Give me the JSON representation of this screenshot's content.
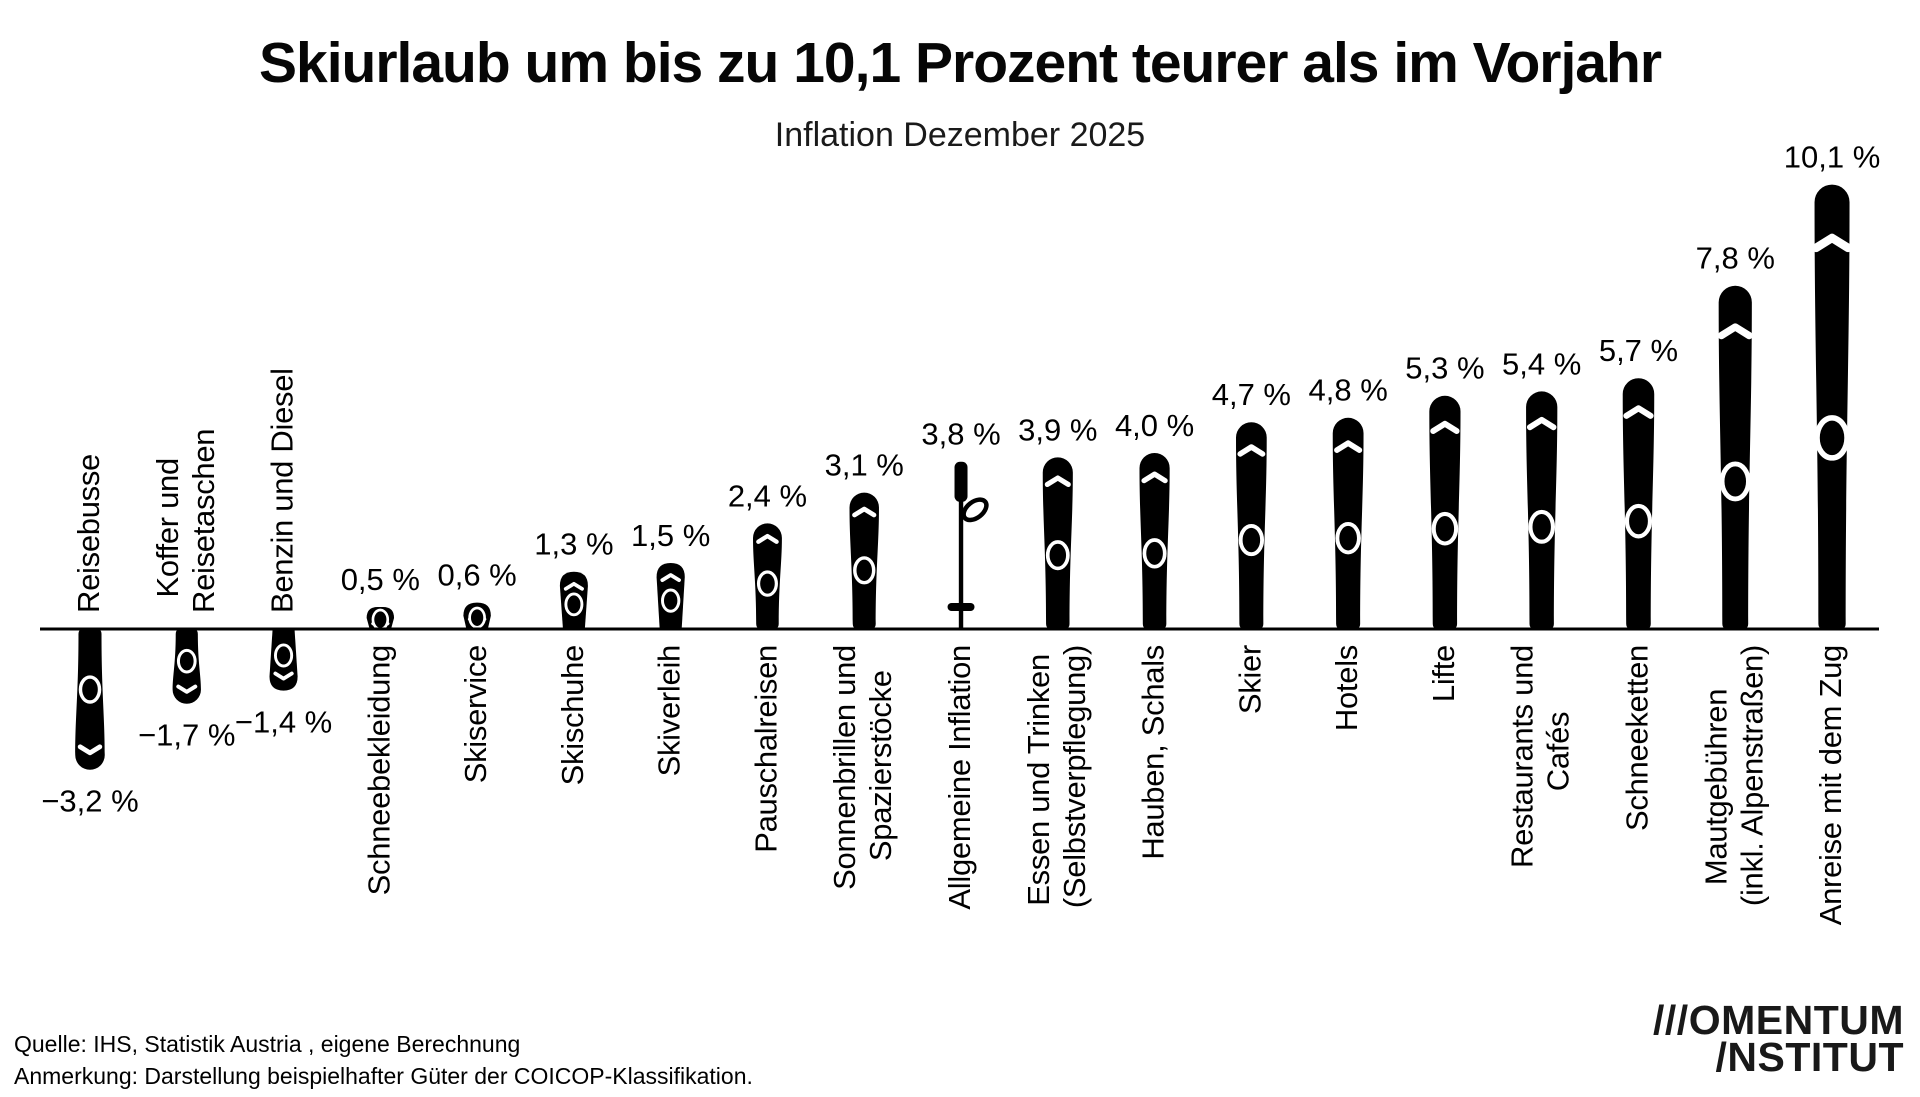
{
  "page": {
    "title": "Skiurlaub um bis zu 10,1 Prozent teurer als im Vorjahr",
    "subtitle": "Inflation Dezember 2025",
    "source_line": "Quelle: IHS, Statistik Austria , eigene Berechnung",
    "note_line": "Anmerkung: Darstellung beispielhafter Güter der COICOP-Klassifikation.",
    "logo_line1": "///OMENTUM",
    "logo_line2": "/NSTITUT"
  },
  "colors": {
    "ink": "#000000",
    "background": "#ffffff",
    "logo": "#191919"
  },
  "chart_data": {
    "type": "bar",
    "title": "Skiurlaub um bis zu 10,1 Prozent teurer als im Vorjahr",
    "subtitle": "Inflation Dezember 2025",
    "unit": "%",
    "ylim": [
      -3.5,
      10.5
    ],
    "baseline": 0,
    "grid": false,
    "legend": false,
    "pictogram": "bars drawn as skis; 'Allgemeine Inflation' drawn as ski pole",
    "categories": [
      "Reisebusse",
      "Koffer und Reisetaschen",
      "Benzin und Diesel",
      "Schneebekleidung",
      "Skiservice",
      "Skischuhe",
      "Skiverleih",
      "Pauschalreisen",
      "Sonnenbrillen und Spazierstöcke",
      "Allgemeine Inflation",
      "Essen und Trinken (Selbstverpflegung)",
      "Hauben, Schals",
      "Skier",
      "Hotels",
      "Lifte",
      "Restaurants und Cafés",
      "Schneeketten",
      "Mautgebühren (inkl. Alpenstraßen)",
      "Anreise mit dem Zug"
    ],
    "category_lines": [
      [
        "Reisebusse"
      ],
      [
        "Koffer und",
        "Reisetaschen"
      ],
      [
        "Benzin und Diesel"
      ],
      [
        "Schneebekleidung"
      ],
      [
        "Skiservice"
      ],
      [
        "Skischuhe"
      ],
      [
        "Skiverleih"
      ],
      [
        "Pauschalreisen"
      ],
      [
        "Sonnenbrillen und",
        "Spazierstöcke"
      ],
      [
        "Allgemeine Inflation"
      ],
      [
        "Essen und Trinken",
        "(Selbstverpflegung)"
      ],
      [
        "Hauben, Schals"
      ],
      [
        "Skier"
      ],
      [
        "Hotels"
      ],
      [
        "Lifte"
      ],
      [
        "Restaurants und",
        "Cafés"
      ],
      [
        "Schneeketten"
      ],
      [
        "Mautgebühren",
        "(inkl. Alpenstraßen)"
      ],
      [
        "Anreise mit dem Zug"
      ]
    ],
    "values": [
      -3.2,
      -1.7,
      -1.4,
      0.5,
      0.6,
      1.3,
      1.5,
      2.4,
      3.1,
      3.8,
      3.9,
      4.0,
      4.7,
      4.8,
      5.3,
      5.4,
      5.7,
      7.8,
      10.1
    ],
    "value_labels": [
      "−3,2 %",
      "−1,7 %",
      "−1,4 %",
      "0,5 %",
      "0,6 %",
      "1,3 %",
      "1,5 %",
      "2,4 %",
      "3,1 %",
      "3,8 %",
      "3,9 %",
      "4,0 %",
      "4,7 %",
      "4,8 %",
      "5,3 %",
      "5,4 %",
      "5,7 %",
      "7,8 %",
      "10,1 %"
    ],
    "markers": [
      "ski",
      "ski",
      "ski",
      "ski",
      "ski",
      "ski",
      "ski",
      "ski",
      "ski",
      "ski-pole",
      "ski",
      "ski",
      "ski",
      "ski",
      "ski",
      "ski",
      "ski",
      "ski",
      "ski"
    ]
  }
}
